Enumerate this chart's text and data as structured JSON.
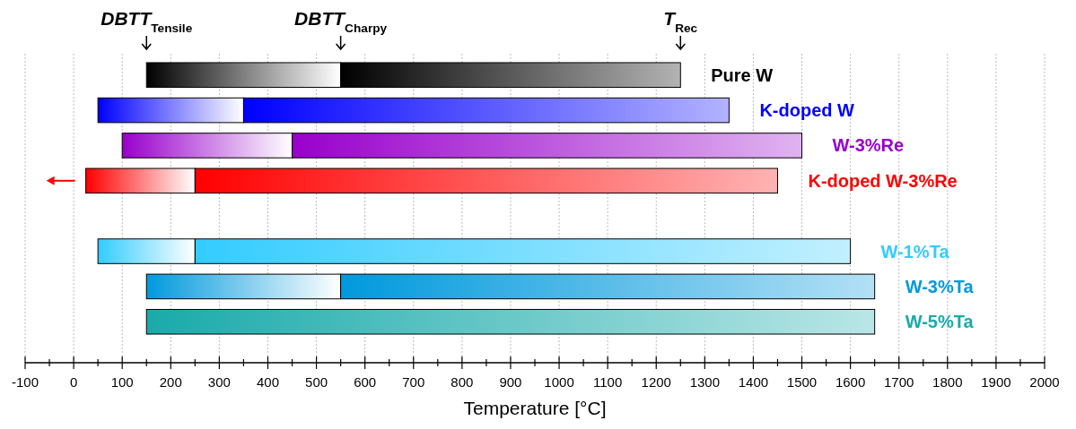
{
  "chart_data": {
    "type": "bar",
    "orientation": "horizontal",
    "categories": [
      "Pure W",
      "K-doped W",
      "W-3%Re",
      "K-doped W-3%Re",
      null,
      "W-1%Ta",
      "W-3%Ta",
      "W-5%Ta"
    ],
    "colors": [
      "#000000",
      "#0000ff",
      "#9900cc",
      "#ff0000",
      null,
      "#33ccff",
      "#0099dd",
      "#1aaaaa"
    ],
    "series": [
      {
        "base": [
          150,
          50,
          100,
          25,
          null,
          50,
          150,
          null
        ],
        "values": [
          400,
          300,
          350,
          225,
          null,
          200,
          400,
          null
        ]
      },
      {
        "base": [
          550,
          350,
          450,
          250,
          null,
          250,
          550,
          150
        ],
        "values": [
          700,
          1000,
          1050,
          1200,
          null,
          1350,
          1100,
          1500
        ]
      }
    ],
    "xlim": [
      -100,
      2000
    ],
    "xticks": [
      -100,
      {
        "value": -50,
        "label": null
      },
      0,
      {
        "value": 50,
        "label": null
      },
      100,
      {
        "value": 150,
        "label": null
      },
      200,
      {
        "value": 250,
        "label": null
      },
      300,
      {
        "value": 350,
        "label": null
      },
      400,
      {
        "value": 450,
        "label": null
      },
      500,
      {
        "value": 550,
        "label": null
      },
      600,
      {
        "value": 650,
        "label": null
      },
      700,
      {
        "value": 750,
        "label": null
      },
      800,
      {
        "value": 850,
        "label": null
      },
      900,
      {
        "value": 950,
        "label": null
      },
      1000,
      {
        "value": 1050,
        "label": null
      },
      1100,
      {
        "value": 1150,
        "label": null
      },
      1200,
      {
        "value": 1250,
        "label": null
      },
      1300,
      {
        "value": 1350,
        "label": null
      },
      1400,
      {
        "value": 1450,
        "label": null
      },
      1500,
      {
        "value": 1550,
        "label": null
      },
      1600,
      {
        "value": 1650,
        "label": null
      },
      1700,
      {
        "value": 1750,
        "label": null
      },
      1800,
      {
        "value": 1850,
        "label": null
      },
      1900,
      {
        "value": 1950,
        "label": null
      },
      2000
    ],
    "xlabel": "Temperature [°C]",
    "grid": "x",
    "annotations": [
      "DBTT$_{Tensile}$",
      "DBTT$_{Charpy}$",
      "T$_{Rec}$"
    ]
  }
}
